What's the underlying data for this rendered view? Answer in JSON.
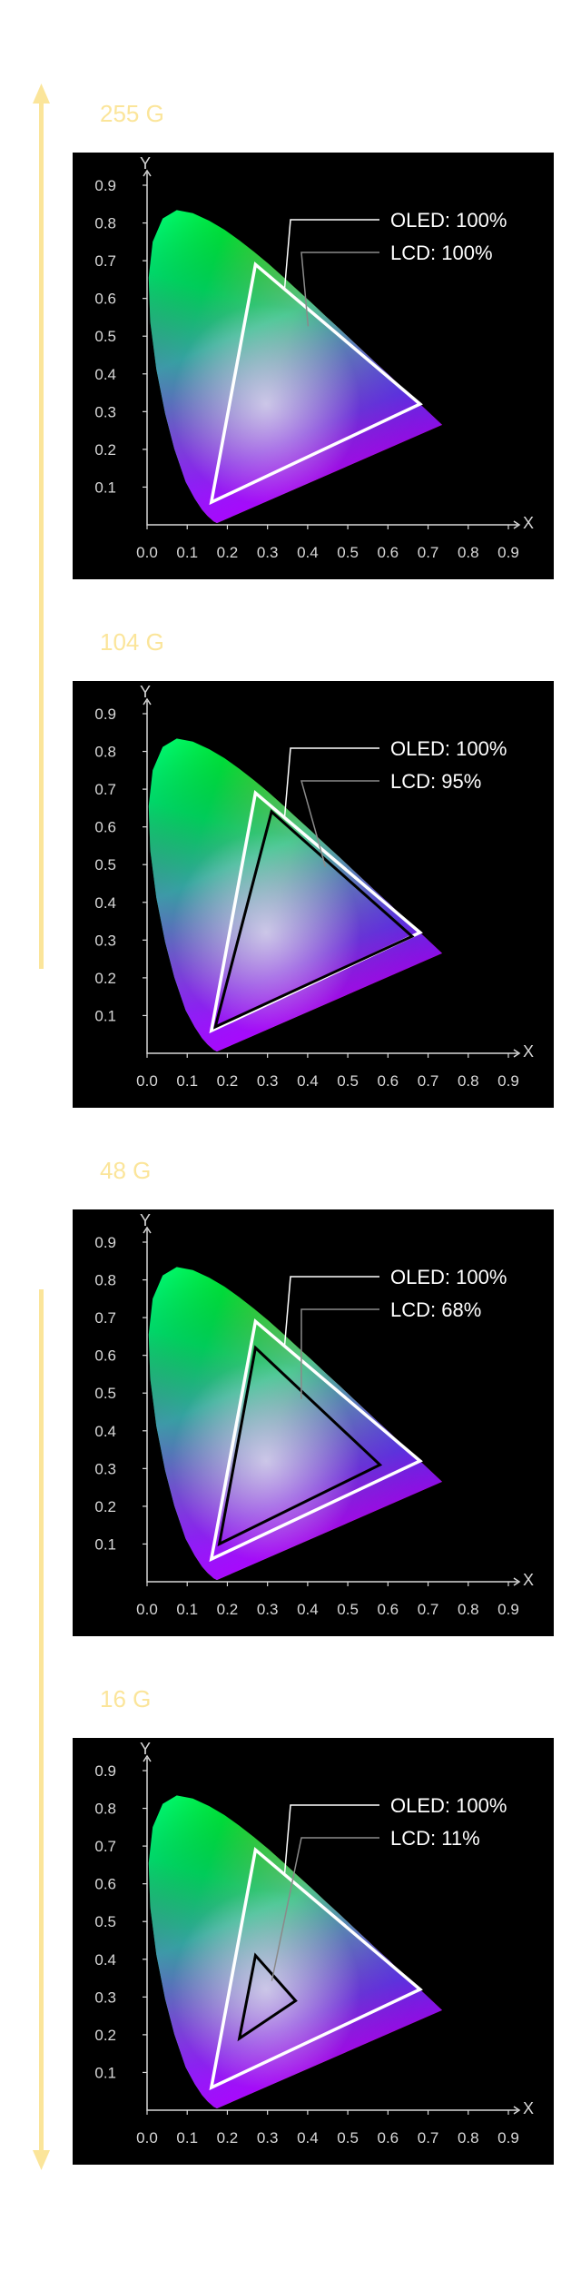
{
  "colors": {
    "accent": "#fbe59a",
    "background": "#000000",
    "axis": "#d8d8d8",
    "oled_outline": "#ffffff",
    "lcd_outline": "#000000"
  },
  "icons": {
    "top_arrow": "arrow-up-icon",
    "bottom_arrow": "arrow-down-icon"
  },
  "chart_data": [
    {
      "type": "scatter",
      "title": "255 G",
      "xlabel": "X",
      "ylabel": "Y",
      "xlim": [
        0,
        0.9
      ],
      "ylim": [
        0,
        0.9
      ],
      "xticks": [
        "0.0",
        "0.1",
        "0.2",
        "0.3",
        "0.4",
        "0.5",
        "0.6",
        "0.7",
        "0.8",
        "0.9"
      ],
      "yticks": [
        "0.1",
        "0.2",
        "0.3",
        "0.4",
        "0.5",
        "0.6",
        "0.7",
        "0.8",
        "0.9"
      ],
      "series": [
        {
          "name": "OLED",
          "label": "OLED: 100%",
          "points": [
            [
              0.27,
              0.69
            ],
            [
              0.68,
              0.32
            ],
            [
              0.16,
              0.06
            ]
          ]
        },
        {
          "name": "LCD",
          "label": "LCD: 100%",
          "points": [
            [
              0.27,
              0.69
            ],
            [
              0.68,
              0.32
            ],
            [
              0.16,
              0.06
            ]
          ]
        }
      ]
    },
    {
      "type": "scatter",
      "title": "104 G",
      "xlabel": "X",
      "ylabel": "Y",
      "xlim": [
        0,
        0.9
      ],
      "ylim": [
        0,
        0.9
      ],
      "xticks": [
        "0.0",
        "0.1",
        "0.2",
        "0.3",
        "0.4",
        "0.5",
        "0.6",
        "0.7",
        "0.8",
        "0.9"
      ],
      "yticks": [
        "0.1",
        "0.2",
        "0.3",
        "0.4",
        "0.5",
        "0.6",
        "0.7",
        "0.8",
        "0.9"
      ],
      "series": [
        {
          "name": "OLED",
          "label": "OLED: 100%",
          "points": [
            [
              0.27,
              0.69
            ],
            [
              0.68,
              0.32
            ],
            [
              0.16,
              0.06
            ]
          ]
        },
        {
          "name": "LCD",
          "label": "LCD: 95%",
          "points": [
            [
              0.31,
              0.64
            ],
            [
              0.66,
              0.31
            ],
            [
              0.17,
              0.07
            ]
          ]
        }
      ]
    },
    {
      "type": "scatter",
      "title": "48 G",
      "xlabel": "X",
      "ylabel": "Y",
      "xlim": [
        0,
        0.9
      ],
      "ylim": [
        0,
        0.9
      ],
      "xticks": [
        "0.0",
        "0.1",
        "0.2",
        "0.3",
        "0.4",
        "0.5",
        "0.6",
        "0.7",
        "0.8",
        "0.9"
      ],
      "yticks": [
        "0.1",
        "0.2",
        "0.3",
        "0.4",
        "0.5",
        "0.6",
        "0.7",
        "0.8",
        "0.9"
      ],
      "series": [
        {
          "name": "OLED",
          "label": "OLED: 100%",
          "points": [
            [
              0.27,
              0.69
            ],
            [
              0.68,
              0.32
            ],
            [
              0.16,
              0.06
            ]
          ]
        },
        {
          "name": "LCD",
          "label": "LCD: 68%",
          "points": [
            [
              0.27,
              0.62
            ],
            [
              0.58,
              0.31
            ],
            [
              0.18,
              0.1
            ]
          ]
        }
      ]
    },
    {
      "type": "scatter",
      "title": "16 G",
      "xlabel": "X",
      "ylabel": "Y",
      "xlim": [
        0,
        0.9
      ],
      "ylim": [
        0,
        0.9
      ],
      "xticks": [
        "0.0",
        "0.1",
        "0.2",
        "0.3",
        "0.4",
        "0.5",
        "0.6",
        "0.7",
        "0.8",
        "0.9"
      ],
      "yticks": [
        "0.1",
        "0.2",
        "0.3",
        "0.4",
        "0.5",
        "0.6",
        "0.7",
        "0.8",
        "0.9"
      ],
      "series": [
        {
          "name": "OLED",
          "label": "OLED: 100%",
          "points": [
            [
              0.27,
              0.69
            ],
            [
              0.68,
              0.32
            ],
            [
              0.16,
              0.06
            ]
          ]
        },
        {
          "name": "LCD",
          "label": "LCD: 11%",
          "points": [
            [
              0.27,
              0.41
            ],
            [
              0.37,
              0.29
            ],
            [
              0.23,
              0.19
            ]
          ]
        }
      ]
    }
  ]
}
